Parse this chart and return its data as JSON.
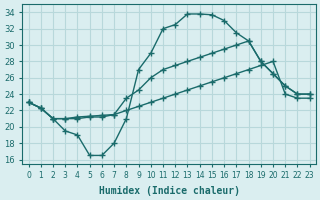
{
  "xlabel": "Humidex (Indice chaleur)",
  "ylabel": "",
  "bg_color": "#daeef0",
  "grid_color": "#b8d8db",
  "line_color": "#1a6b6b",
  "xlim": [
    -0.5,
    23.5
  ],
  "ylim": [
    15.5,
    35.0
  ],
  "xticks": [
    0,
    1,
    2,
    3,
    4,
    5,
    6,
    7,
    8,
    9,
    10,
    11,
    12,
    13,
    14,
    15,
    16,
    17,
    18,
    19,
    20,
    21,
    22,
    23
  ],
  "yticks": [
    16,
    18,
    20,
    22,
    24,
    26,
    28,
    30,
    32,
    34
  ],
  "line1_x": [
    0,
    1,
    2,
    3,
    4,
    5,
    6,
    7,
    8,
    9,
    10,
    11,
    12,
    13,
    14,
    15,
    16,
    17,
    18,
    19,
    20,
    21,
    22,
    23
  ],
  "line1_y": [
    23.0,
    22.3,
    21.0,
    19.5,
    19.0,
    16.5,
    16.5,
    18.0,
    21.0,
    27.0,
    29.0,
    32.0,
    32.5,
    33.8,
    33.8,
    33.7,
    33.0,
    31.5,
    30.5,
    28.0,
    26.5,
    25.0,
    24.0,
    24.0
  ],
  "line2_x": [
    0,
    1,
    2,
    3,
    4,
    5,
    6,
    7,
    8,
    9,
    10,
    11,
    12,
    13,
    14,
    15,
    16,
    17,
    18,
    19,
    20,
    21,
    22,
    23
  ],
  "line2_y": [
    23.0,
    22.3,
    21.0,
    21.0,
    21.0,
    21.2,
    21.2,
    21.5,
    23.5,
    24.5,
    26.0,
    27.0,
    27.5,
    28.0,
    28.5,
    29.0,
    29.5,
    30.0,
    30.5,
    28.0,
    26.5,
    25.0,
    24.0,
    24.0
  ],
  "line3_x": [
    0,
    1,
    2,
    3,
    4,
    5,
    6,
    7,
    8,
    9,
    10,
    11,
    12,
    13,
    14,
    15,
    16,
    17,
    18,
    19,
    20,
    21,
    22,
    23
  ],
  "line3_y": [
    23.0,
    22.3,
    21.0,
    21.0,
    21.2,
    21.3,
    21.4,
    21.5,
    22.0,
    22.5,
    23.0,
    23.5,
    24.0,
    24.5,
    25.0,
    25.5,
    26.0,
    26.5,
    27.0,
    27.5,
    28.0,
    24.0,
    23.5,
    23.5
  ]
}
